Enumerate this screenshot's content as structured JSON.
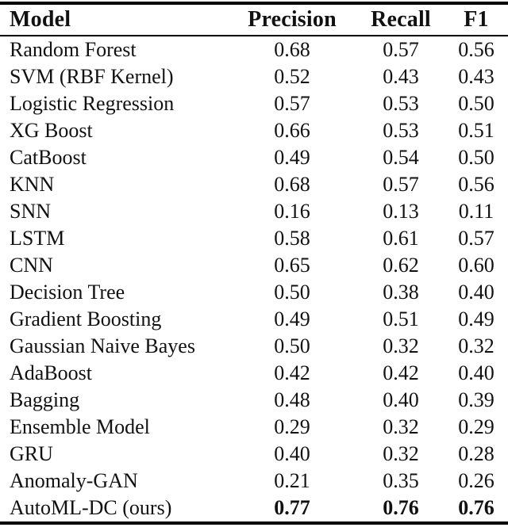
{
  "table": {
    "columns": [
      "Model",
      "Precision",
      "Recall",
      "F1"
    ],
    "rows": [
      {
        "model": "Random Forest",
        "precision": "0.68",
        "recall": "0.57",
        "f1": "0.56",
        "emphasis": false
      },
      {
        "model": "SVM (RBF Kernel)",
        "precision": "0.52",
        "recall": "0.43",
        "f1": "0.43",
        "emphasis": false
      },
      {
        "model": "Logistic Regression",
        "precision": "0.57",
        "recall": "0.53",
        "f1": "0.50",
        "emphasis": false
      },
      {
        "model": "XG Boost",
        "precision": "0.66",
        "recall": "0.53",
        "f1": "0.51",
        "emphasis": false
      },
      {
        "model": "CatBoost",
        "precision": "0.49",
        "recall": "0.54",
        "f1": "0.50",
        "emphasis": false
      },
      {
        "model": "KNN",
        "precision": "0.68",
        "recall": "0.57",
        "f1": "0.56",
        "emphasis": false
      },
      {
        "model": "SNN",
        "precision": "0.16",
        "recall": "0.13",
        "f1": "0.11",
        "emphasis": false
      },
      {
        "model": "LSTM",
        "precision": "0.58",
        "recall": "0.61",
        "f1": "0.57",
        "emphasis": false
      },
      {
        "model": "CNN",
        "precision": "0.65",
        "recall": "0.62",
        "f1": "0.60",
        "emphasis": false
      },
      {
        "model": "Decision Tree",
        "precision": "0.50",
        "recall": "0.38",
        "f1": "0.40",
        "emphasis": false
      },
      {
        "model": "Gradient Boosting",
        "precision": "0.49",
        "recall": "0.51",
        "f1": "0.49",
        "emphasis": false
      },
      {
        "model": "Gaussian Naive Bayes",
        "precision": "0.50",
        "recall": "0.32",
        "f1": "0.32",
        "emphasis": false
      },
      {
        "model": "AdaBoost",
        "precision": "0.42",
        "recall": "0.42",
        "f1": "0.40",
        "emphasis": false
      },
      {
        "model": "Bagging",
        "precision": "0.48",
        "recall": "0.40",
        "f1": "0.39",
        "emphasis": false
      },
      {
        "model": "Ensemble Model",
        "precision": "0.29",
        "recall": "0.32",
        "f1": "0.29",
        "emphasis": false
      },
      {
        "model": "GRU",
        "precision": "0.40",
        "recall": "0.32",
        "f1": "0.28",
        "emphasis": false
      },
      {
        "model": "Anomaly-GAN",
        "precision": "0.21",
        "recall": "0.35",
        "f1": "0.26",
        "emphasis": false
      },
      {
        "model": "AutoML-DC (ours)",
        "precision": "0.77",
        "recall": "0.76",
        "f1": "0.76",
        "emphasis": true
      }
    ]
  },
  "colors": {
    "text": "#111111",
    "rule": "#000000",
    "background": "#ffffff"
  }
}
